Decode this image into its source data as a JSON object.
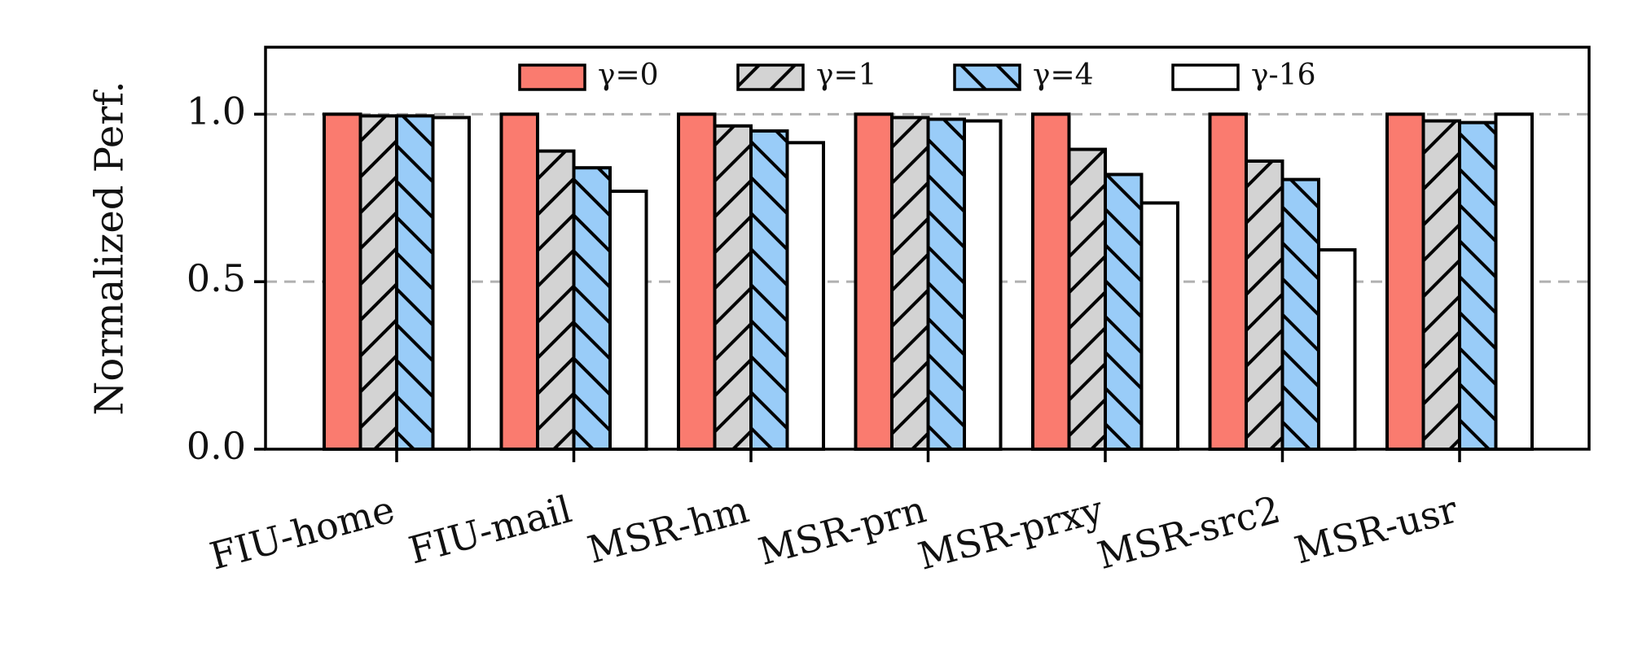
{
  "chart_data": {
    "type": "bar",
    "ylabel": "Normalized Perf.",
    "xlabel": "",
    "ylim": [
      0,
      1.2
    ],
    "yticks": [
      0.0,
      0.5,
      1.0
    ],
    "ytick_labels": [
      "0.0",
      "0.5",
      "1.0"
    ],
    "grid": "horizontal dashed at 0.5 and 1.0",
    "legend_position": "top-center",
    "categories": [
      "FIU-home",
      "FIU-mail",
      "MSR-hm",
      "MSR-prn",
      "MSR-prxy",
      "MSR-src2",
      "MSR-usr"
    ],
    "series": [
      {
        "name": "γ=0",
        "color": "#fa7b6f",
        "hatch": "none",
        "values": [
          1.0,
          1.0,
          1.0,
          1.0,
          1.0,
          1.0,
          1.0
        ]
      },
      {
        "name": "γ=1",
        "color": "#d3d3d3",
        "hatch": "diagonal-up",
        "values": [
          0.995,
          0.89,
          0.965,
          0.99,
          0.895,
          0.86,
          0.98
        ]
      },
      {
        "name": "γ=4",
        "color": "#99ccf8",
        "hatch": "diagonal-down",
        "values": [
          0.995,
          0.84,
          0.95,
          0.985,
          0.82,
          0.805,
          0.975
        ]
      },
      {
        "name": "γ-16",
        "color": "#ffffff",
        "hatch": "none",
        "values": [
          0.99,
          0.77,
          0.915,
          0.98,
          0.735,
          0.595,
          1.0
        ]
      }
    ]
  }
}
